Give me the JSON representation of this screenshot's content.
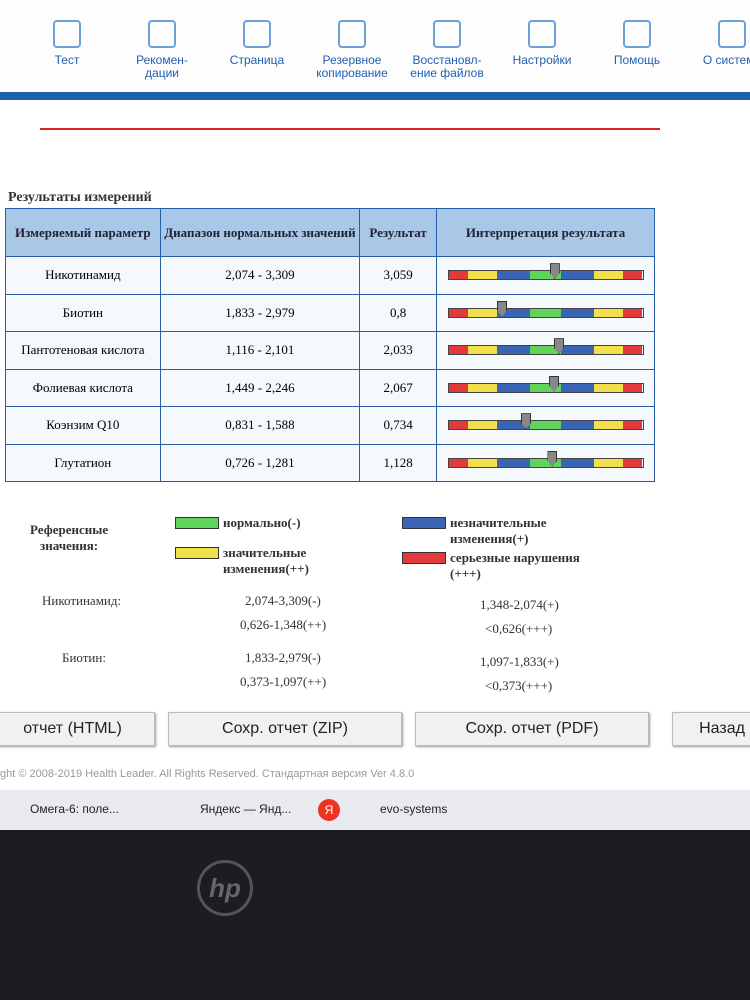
{
  "nav": [
    "Тест",
    "Рекомен-\nдации",
    "Страница",
    "Резервное\nкопирование",
    "Восстановл-\nение файлов",
    "Настройки",
    "Помощь",
    "О системе"
  ],
  "section_title": "Результаты измерений",
  "table": {
    "headers": [
      "Измеряемый параметр",
      "Диапазон нормальных значений",
      "Результат",
      "Интерпретация результата"
    ],
    "rows": [
      [
        "Никотинамид",
        "2,074 - 3,309",
        "3,059"
      ],
      [
        "Биотин",
        "1,833 - 2,979",
        "0,8"
      ],
      [
        "Пантотеновая кислота",
        "1,116 - 2,101",
        "2,033"
      ],
      [
        "Фолиевая кислота",
        "1,449 - 2,246",
        "2,067"
      ],
      [
        "Коэнзим Q10",
        "0,831 - 1,588",
        "0,734"
      ],
      [
        "Глутатион",
        "0,726 - 1,281",
        "1,128"
      ]
    ]
  },
  "legend": {
    "title": "Референсные\nзначения:",
    "items": [
      {
        "label": "нормально(-)",
        "color": "#5fd35a"
      },
      {
        "label": "незначительные\nизменения(+)",
        "color": "#3a64b4"
      },
      {
        "label": "значительные\nизменения(++)",
        "color": "#f0e04a"
      },
      {
        "label": "серьезные нарушения\n(+++)",
        "color": "#e23a3a"
      }
    ]
  },
  "reference": [
    {
      "name": "Никотинамид:",
      "values": [
        "2,074-3,309(-)",
        "1,348-2,074(+)",
        "0,626-1,348(++)",
        "<0,626(+++)"
      ]
    },
    {
      "name": "Биотин:",
      "values": [
        "1,833-2,979(-)",
        "1,097-1,833(+)",
        "0,373-1,097(++)",
        "<0,373(+++)"
      ]
    }
  ],
  "buttons": [
    "отчет (HTML)",
    "Сохр. отчет (ZIP)",
    "Сохр. отчет (PDF)",
    "Назад"
  ],
  "footer": "ght © 2008-2019 Health Leader. All Rights Reserved. Стандартная версия Ver 4.8.0",
  "taskbar": [
    "Омега-6: поле...",
    "Яндекс — Янд...",
    "Я",
    "evo-systems"
  ]
}
